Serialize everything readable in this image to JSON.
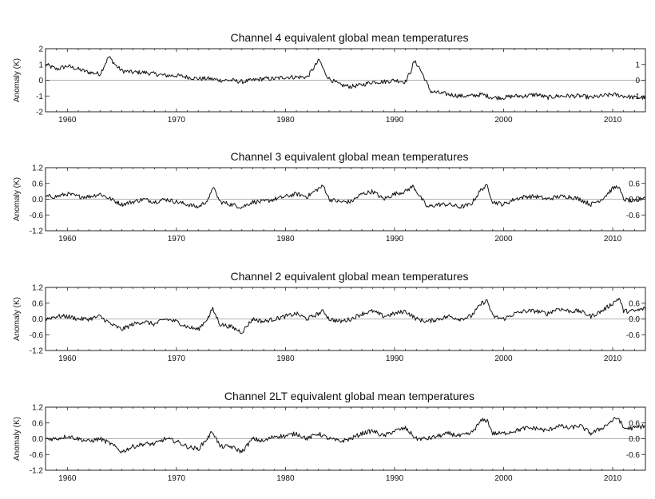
{
  "chart_data": [
    {
      "type": "line",
      "title": "Channel 4 equivalent global mean temperatures",
      "ylabel": "Anomaly (K)",
      "xlabel": "",
      "xlim": [
        1958,
        2013
      ],
      "ylim": [
        -2,
        2
      ],
      "x_ticks": [
        1960,
        1970,
        1980,
        1990,
        2000,
        2010
      ],
      "y_ticks": [
        2,
        1,
        0,
        -1,
        -2
      ],
      "y_tick_labels": [
        "2",
        "1",
        "0",
        "-1",
        "-2"
      ],
      "zero_line": true,
      "series_color": "#111111",
      "knots": [
        [
          1958,
          1.0
        ],
        [
          1959,
          0.7
        ],
        [
          1960,
          0.9
        ],
        [
          1961,
          0.7
        ],
        [
          1962,
          0.5
        ],
        [
          1963,
          0.4
        ],
        [
          1963.8,
          1.5
        ],
        [
          1964.5,
          0.9
        ],
        [
          1965,
          0.6
        ],
        [
          1966,
          0.5
        ],
        [
          1967,
          0.5
        ],
        [
          1968,
          0.4
        ],
        [
          1969,
          0.3
        ],
        [
          1970,
          0.3
        ],
        [
          1971,
          0.2
        ],
        [
          1972,
          0.1
        ],
        [
          1973,
          0.1
        ],
        [
          1974,
          0.0
        ],
        [
          1975,
          0.0
        ],
        [
          1976,
          -0.1
        ],
        [
          1977,
          0.0
        ],
        [
          1978,
          0.1
        ],
        [
          1979,
          0.1
        ],
        [
          1980,
          0.2
        ],
        [
          1981,
          0.2
        ],
        [
          1982,
          0.2
        ],
        [
          1982.5,
          0.7
        ],
        [
          1983.1,
          1.3
        ],
        [
          1983.6,
          0.5
        ],
        [
          1984,
          0.1
        ],
        [
          1985,
          -0.3
        ],
        [
          1986,
          -0.4
        ],
        [
          1987,
          -0.3
        ],
        [
          1988,
          -0.1
        ],
        [
          1989,
          -0.1
        ],
        [
          1990,
          0.0
        ],
        [
          1991,
          -0.1
        ],
        [
          1991.5,
          0.6
        ],
        [
          1991.8,
          1.2
        ],
        [
          1992.2,
          0.9
        ],
        [
          1992.7,
          0.2
        ],
        [
          1993.3,
          -0.7
        ],
        [
          1994,
          -0.8
        ],
        [
          1995,
          -0.9
        ],
        [
          1996,
          -1.0
        ],
        [
          1997,
          -1.0
        ],
        [
          1998,
          -0.9
        ],
        [
          1999,
          -1.1
        ],
        [
          2000,
          -1.1
        ],
        [
          2001,
          -1.0
        ],
        [
          2002,
          -1.0
        ],
        [
          2003,
          -0.9
        ],
        [
          2004,
          -1.1
        ],
        [
          2005,
          -1.0
        ],
        [
          2006,
          -1.0
        ],
        [
          2007,
          -1.0
        ],
        [
          2008,
          -1.1
        ],
        [
          2009,
          -1.0
        ],
        [
          2010,
          -0.9
        ],
        [
          2011,
          -1.0
        ],
        [
          2012,
          -1.1
        ],
        [
          2013,
          -1.1
        ]
      ]
    },
    {
      "type": "line",
      "title": "Channel 3 equivalent global mean temperatures",
      "ylabel": "Anomaly (K)",
      "xlabel": "",
      "xlim": [
        1958,
        2013
      ],
      "ylim": [
        -1.2,
        1.2
      ],
      "x_ticks": [
        1960,
        1970,
        1980,
        1990,
        2000,
        2010
      ],
      "y_ticks": [
        1.2,
        0.6,
        0.0,
        -0.6,
        -1.2
      ],
      "y_tick_labels": [
        "1.2",
        "0.6",
        "0.0",
        "-0.6",
        "-1.2"
      ],
      "zero_line": true,
      "series_color": "#111111",
      "knots": [
        [
          1958,
          0.1
        ],
        [
          1959,
          0.1
        ],
        [
          1960,
          0.2
        ],
        [
          1961,
          0.1
        ],
        [
          1962,
          0.1
        ],
        [
          1963,
          0.2
        ],
        [
          1964,
          0.0
        ],
        [
          1965,
          -0.2
        ],
        [
          1966,
          -0.1
        ],
        [
          1967,
          0.0
        ],
        [
          1968,
          -0.1
        ],
        [
          1969,
          0.0
        ],
        [
          1970,
          -0.1
        ],
        [
          1971,
          -0.2
        ],
        [
          1972,
          -0.3
        ],
        [
          1973,
          0.0
        ],
        [
          1973.3,
          0.5
        ],
        [
          1974,
          -0.1
        ],
        [
          1975,
          -0.2
        ],
        [
          1976,
          -0.3
        ],
        [
          1977,
          -0.1
        ],
        [
          1978,
          -0.1
        ],
        [
          1979,
          0.0
        ],
        [
          1980,
          0.1
        ],
        [
          1981,
          0.2
        ],
        [
          1982,
          0.1
        ],
        [
          1983,
          0.4
        ],
        [
          1983.5,
          0.5
        ],
        [
          1984,
          0.0
        ],
        [
          1985,
          -0.1
        ],
        [
          1986,
          -0.1
        ],
        [
          1987,
          0.2
        ],
        [
          1988,
          0.3
        ],
        [
          1989,
          0.0
        ],
        [
          1990,
          0.2
        ],
        [
          1991,
          0.3
        ],
        [
          1991.7,
          0.5
        ],
        [
          1992.5,
          0.0
        ],
        [
          1993,
          -0.3
        ],
        [
          1994,
          -0.2
        ],
        [
          1995,
          -0.2
        ],
        [
          1996,
          -0.3
        ],
        [
          1997,
          -0.2
        ],
        [
          1998,
          0.4
        ],
        [
          1998.5,
          0.5
        ],
        [
          1999,
          -0.1
        ],
        [
          2000,
          -0.2
        ],
        [
          2001,
          0.0
        ],
        [
          2002,
          0.1
        ],
        [
          2003,
          0.1
        ],
        [
          2004,
          0.0
        ],
        [
          2005,
          0.1
        ],
        [
          2006,
          0.1
        ],
        [
          2007,
          0.0
        ],
        [
          2008,
          -0.2
        ],
        [
          2009,
          0.0
        ],
        [
          2010,
          0.4
        ],
        [
          2010.5,
          0.5
        ],
        [
          2011,
          0.0
        ],
        [
          2012,
          -0.1
        ],
        [
          2013,
          0.1
        ]
      ]
    },
    {
      "type": "line",
      "title": "Channel 2 equivalent global mean temperatures",
      "ylabel": "Anomaly (K)",
      "xlabel": "",
      "xlim": [
        1958,
        2013
      ],
      "ylim": [
        -1.2,
        1.2
      ],
      "x_ticks": [
        1960,
        1970,
        1980,
        1990,
        2000,
        2010
      ],
      "y_ticks": [
        1.2,
        0.6,
        0.0,
        -0.6,
        -1.2
      ],
      "y_tick_labels": [
        "1.2",
        "0.6",
        "0.0",
        "-0.6",
        "-1.2"
      ],
      "zero_line": true,
      "series_color": "#111111",
      "knots": [
        [
          1958,
          0.0
        ],
        [
          1959,
          0.1
        ],
        [
          1960,
          0.1
        ],
        [
          1961,
          0.0
        ],
        [
          1962,
          0.0
        ],
        [
          1963,
          0.1
        ],
        [
          1964,
          -0.2
        ],
        [
          1965,
          -0.4
        ],
        [
          1966,
          -0.2
        ],
        [
          1967,
          -0.1
        ],
        [
          1968,
          -0.2
        ],
        [
          1969,
          0.0
        ],
        [
          1970,
          -0.1
        ],
        [
          1971,
          -0.3
        ],
        [
          1972,
          -0.4
        ],
        [
          1973,
          0.1
        ],
        [
          1973.3,
          0.4
        ],
        [
          1974,
          -0.2
        ],
        [
          1975,
          -0.3
        ],
        [
          1976,
          -0.5
        ],
        [
          1977,
          0.0
        ],
        [
          1978,
          -0.1
        ],
        [
          1979,
          0.0
        ],
        [
          1980,
          0.1
        ],
        [
          1981,
          0.2
        ],
        [
          1982,
          0.0
        ],
        [
          1983,
          0.2
        ],
        [
          1983.5,
          0.3
        ],
        [
          1984,
          0.0
        ],
        [
          1985,
          -0.1
        ],
        [
          1986,
          0.0
        ],
        [
          1987,
          0.2
        ],
        [
          1988,
          0.3
        ],
        [
          1989,
          0.1
        ],
        [
          1990,
          0.2
        ],
        [
          1991,
          0.3
        ],
        [
          1992,
          0.0
        ],
        [
          1993,
          -0.1
        ],
        [
          1994,
          0.0
        ],
        [
          1995,
          0.1
        ],
        [
          1996,
          0.0
        ],
        [
          1997,
          0.1
        ],
        [
          1998,
          0.6
        ],
        [
          1998.5,
          0.7
        ],
        [
          1999,
          0.1
        ],
        [
          2000,
          0.0
        ],
        [
          2001,
          0.2
        ],
        [
          2002,
          0.3
        ],
        [
          2003,
          0.3
        ],
        [
          2004,
          0.2
        ],
        [
          2005,
          0.4
        ],
        [
          2006,
          0.3
        ],
        [
          2007,
          0.3
        ],
        [
          2008,
          0.1
        ],
        [
          2009,
          0.3
        ],
        [
          2010,
          0.6
        ],
        [
          2010.6,
          0.8
        ],
        [
          2011,
          0.3
        ],
        [
          2012,
          0.3
        ],
        [
          2013,
          0.4
        ]
      ]
    },
    {
      "type": "line",
      "title": "Channel 2LT equivalent global mean temperatures",
      "ylabel": "Anomaly (K)",
      "xlabel": "",
      "xlim": [
        1958,
        2013
      ],
      "ylim": [
        -1.2,
        1.2
      ],
      "x_ticks": [
        1960,
        1970,
        1980,
        1990,
        2000,
        2010
      ],
      "y_ticks": [
        1.2,
        0.6,
        0.0,
        -0.6,
        -1.2
      ],
      "y_tick_labels": [
        "1.2",
        "0.6",
        "0.0",
        "-0.6",
        "-1.2"
      ],
      "zero_line": true,
      "series_color": "#111111",
      "knots": [
        [
          1958,
          0.0
        ],
        [
          1959,
          0.0
        ],
        [
          1960,
          0.1
        ],
        [
          1961,
          0.0
        ],
        [
          1962,
          -0.1
        ],
        [
          1963,
          0.0
        ],
        [
          1964,
          -0.2
        ],
        [
          1965,
          -0.5
        ],
        [
          1966,
          -0.3
        ],
        [
          1967,
          -0.2
        ],
        [
          1968,
          -0.2
        ],
        [
          1969,
          0.0
        ],
        [
          1970,
          -0.1
        ],
        [
          1971,
          -0.3
        ],
        [
          1972,
          -0.4
        ],
        [
          1973,
          0.1
        ],
        [
          1973.3,
          0.3
        ],
        [
          1974,
          -0.3
        ],
        [
          1975,
          -0.3
        ],
        [
          1976,
          -0.5
        ],
        [
          1977,
          0.0
        ],
        [
          1978,
          -0.1
        ],
        [
          1979,
          0.1
        ],
        [
          1980,
          0.1
        ],
        [
          1981,
          0.2
        ],
        [
          1982,
          0.0
        ],
        [
          1983,
          0.2
        ],
        [
          1984,
          0.0
        ],
        [
          1985,
          -0.1
        ],
        [
          1986,
          0.0
        ],
        [
          1987,
          0.2
        ],
        [
          1988,
          0.3
        ],
        [
          1989,
          0.1
        ],
        [
          1990,
          0.3
        ],
        [
          1991,
          0.4
        ],
        [
          1992,
          0.0
        ],
        [
          1993,
          0.0
        ],
        [
          1994,
          0.1
        ],
        [
          1995,
          0.2
        ],
        [
          1996,
          0.1
        ],
        [
          1997,
          0.2
        ],
        [
          1998,
          0.7
        ],
        [
          1998.5,
          0.7
        ],
        [
          1999,
          0.2
        ],
        [
          2000,
          0.2
        ],
        [
          2001,
          0.3
        ],
        [
          2002,
          0.4
        ],
        [
          2003,
          0.4
        ],
        [
          2004,
          0.3
        ],
        [
          2005,
          0.5
        ],
        [
          2006,
          0.4
        ],
        [
          2007,
          0.5
        ],
        [
          2008,
          0.2
        ],
        [
          2009,
          0.4
        ],
        [
          2010,
          0.7
        ],
        [
          2010.5,
          0.8
        ],
        [
          2011,
          0.4
        ],
        [
          2012,
          0.4
        ],
        [
          2013,
          0.5
        ]
      ]
    }
  ]
}
